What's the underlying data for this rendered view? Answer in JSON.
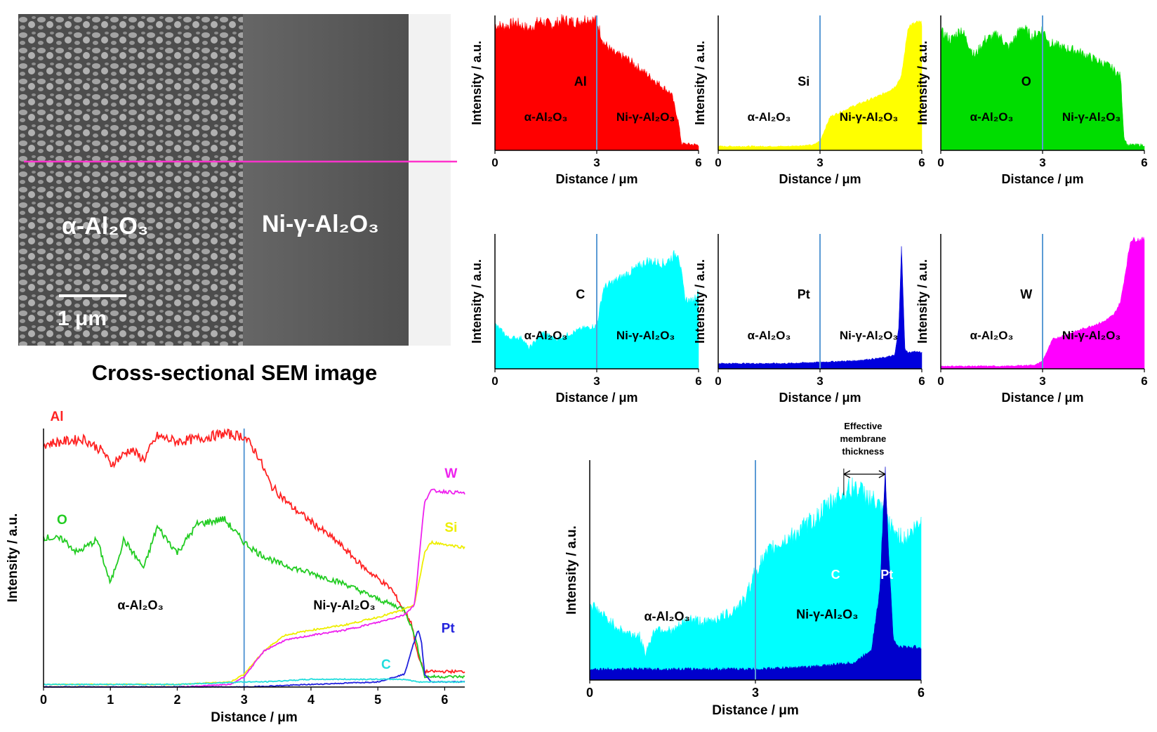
{
  "sem": {
    "caption": "Cross-sectional SEM image",
    "left_label": "α-Al₂O₃",
    "right_label": "Ni-γ-Al₂O₃",
    "scale_label": "1 μm",
    "line_color": "#ff33cc"
  },
  "common": {
    "xlabel": "Distance / μm",
    "ylabel": "Intensity / a.u.",
    "left_region": "α-Al₂O₃",
    "right_region": "Ni-γ-Al₂O₃",
    "interface_x": 3,
    "interface_color": "#5b9bd5"
  },
  "chart_data": [
    {
      "id": "al",
      "type": "area",
      "element": "Al",
      "color": "#ff0000",
      "xlim": [
        0,
        6
      ],
      "xticks": [
        0,
        3,
        6
      ],
      "x": [
        0,
        0.3,
        0.6,
        1.0,
        1.3,
        1.7,
        2.0,
        2.4,
        2.7,
        3.0,
        3.2,
        3.5,
        3.9,
        4.3,
        4.8,
        5.2,
        5.4,
        5.5,
        6.0
      ],
      "y": [
        0.93,
        0.92,
        0.95,
        0.9,
        0.96,
        0.93,
        0.97,
        0.95,
        0.98,
        0.96,
        0.8,
        0.72,
        0.68,
        0.6,
        0.5,
        0.42,
        0.22,
        0.05,
        0.04
      ]
    },
    {
      "id": "si",
      "type": "area",
      "element": "Si",
      "color": "#ffff00",
      "xlim": [
        0,
        6
      ],
      "xticks": [
        0,
        3,
        6
      ],
      "x": [
        0,
        1,
        2,
        2.8,
        3.0,
        3.3,
        4.0,
        4.8,
        5.2,
        5.4,
        5.6,
        5.9,
        6.0
      ],
      "y": [
        0.03,
        0.03,
        0.03,
        0.04,
        0.07,
        0.25,
        0.33,
        0.41,
        0.47,
        0.55,
        0.92,
        0.95,
        0.94
      ]
    },
    {
      "id": "o",
      "type": "area",
      "element": "O",
      "color": "#00dd00",
      "xlim": [
        0,
        6
      ],
      "xticks": [
        0,
        3,
        6
      ],
      "x": [
        0,
        0.3,
        0.6,
        1.0,
        1.3,
        1.7,
        2.0,
        2.4,
        2.7,
        3.0,
        3.2,
        3.6,
        4.0,
        4.5,
        5.0,
        5.3,
        5.4,
        5.5,
        6.0
      ],
      "y": [
        0.88,
        0.82,
        0.9,
        0.7,
        0.82,
        0.86,
        0.76,
        0.92,
        0.84,
        0.9,
        0.8,
        0.76,
        0.74,
        0.68,
        0.62,
        0.55,
        0.1,
        0.04,
        0.04
      ]
    },
    {
      "id": "c",
      "type": "area",
      "element": "C",
      "color": "#00ffff",
      "xlim": [
        0,
        6
      ],
      "xticks": [
        0,
        3,
        6
      ],
      "x": [
        0,
        0.4,
        0.8,
        1.0,
        1.4,
        1.8,
        2.2,
        2.6,
        3.0,
        3.2,
        3.6,
        4.0,
        4.5,
        5.0,
        5.4,
        5.6,
        5.8,
        6.0
      ],
      "y": [
        0.33,
        0.23,
        0.23,
        0.15,
        0.27,
        0.22,
        0.26,
        0.3,
        0.32,
        0.6,
        0.66,
        0.72,
        0.8,
        0.78,
        0.87,
        0.52,
        0.5,
        0.57
      ]
    },
    {
      "id": "pt",
      "type": "area",
      "element": "Pt",
      "color": "#0000dd",
      "xlim": [
        0,
        6
      ],
      "xticks": [
        0,
        3,
        6
      ],
      "x": [
        0,
        1,
        2,
        3,
        4,
        4.8,
        5.2,
        5.32,
        5.4,
        5.45,
        5.5,
        5.6,
        5.8,
        6.0
      ],
      "y": [
        0.04,
        0.04,
        0.04,
        0.05,
        0.06,
        0.08,
        0.1,
        0.3,
        0.92,
        0.55,
        0.15,
        0.12,
        0.13,
        0.12
      ]
    },
    {
      "id": "w",
      "type": "area",
      "element": "W",
      "color": "#ff00ff",
      "xlim": [
        0,
        6
      ],
      "xticks": [
        0,
        3,
        6
      ],
      "x": [
        0,
        1,
        2,
        2.8,
        3.0,
        3.3,
        4.0,
        4.8,
        5.1,
        5.3,
        5.6,
        6.0
      ],
      "y": [
        0.02,
        0.02,
        0.02,
        0.03,
        0.06,
        0.22,
        0.28,
        0.35,
        0.4,
        0.5,
        0.96,
        0.96
      ]
    },
    {
      "id": "combined",
      "type": "line",
      "xlim": [
        0,
        6.3
      ],
      "xticks": [
        0,
        1,
        2,
        3,
        4,
        5,
        6
      ],
      "series": [
        {
          "name": "Al",
          "color": "#ff2222",
          "x": [
            0,
            0.3,
            0.6,
            0.9,
            1.0,
            1.3,
            1.5,
            1.7,
            2.0,
            2.3,
            2.7,
            3.0,
            3.2,
            3.4,
            3.7,
            4.0,
            4.4,
            4.8,
            5.2,
            5.5,
            5.6,
            5.7,
            6.3
          ],
          "y": [
            0.94,
            0.95,
            0.96,
            0.91,
            0.86,
            0.92,
            0.88,
            0.97,
            0.95,
            0.96,
            0.98,
            0.97,
            0.9,
            0.78,
            0.7,
            0.64,
            0.56,
            0.46,
            0.38,
            0.25,
            0.12,
            0.06,
            0.06
          ]
        },
        {
          "name": "O",
          "color": "#22cc22",
          "x": [
            0,
            0.3,
            0.5,
            0.8,
            1.0,
            1.2,
            1.5,
            1.7,
            2.0,
            2.3,
            2.7,
            3.0,
            3.2,
            3.5,
            4.0,
            4.5,
            5.0,
            5.4,
            5.55,
            5.7,
            6.3
          ],
          "y": [
            0.58,
            0.57,
            0.52,
            0.57,
            0.4,
            0.57,
            0.46,
            0.62,
            0.52,
            0.63,
            0.65,
            0.56,
            0.52,
            0.48,
            0.44,
            0.4,
            0.34,
            0.3,
            0.2,
            0.04,
            0.04
          ]
        },
        {
          "name": "Si",
          "color": "#eeee00",
          "x": [
            0,
            1,
            2,
            2.8,
            3.0,
            3.3,
            3.6,
            4.0,
            4.5,
            5.0,
            5.4,
            5.55,
            5.7,
            5.8,
            6.3
          ],
          "y": [
            0.01,
            0.01,
            0.01,
            0.02,
            0.05,
            0.14,
            0.2,
            0.22,
            0.24,
            0.27,
            0.3,
            0.32,
            0.52,
            0.56,
            0.54
          ]
        },
        {
          "name": "W",
          "color": "#ee22ee",
          "x": [
            0,
            1,
            2,
            2.8,
            3.0,
            3.3,
            3.6,
            4.0,
            4.5,
            5.0,
            5.4,
            5.55,
            5.7,
            5.8,
            6.3
          ],
          "y": [
            0.0,
            0.0,
            0.0,
            0.01,
            0.04,
            0.14,
            0.18,
            0.2,
            0.22,
            0.25,
            0.28,
            0.32,
            0.72,
            0.76,
            0.75
          ]
        },
        {
          "name": "Pt",
          "color": "#2222dd",
          "x": [
            0,
            2,
            3,
            4,
            5,
            5.4,
            5.5,
            5.6,
            5.65,
            5.7,
            5.8,
            6.3
          ],
          "y": [
            0.0,
            0.0,
            0.0,
            0.01,
            0.02,
            0.05,
            0.14,
            0.22,
            0.18,
            0.05,
            0.02,
            0.02
          ]
        },
        {
          "name": "C",
          "color": "#22dddd",
          "x": [
            0,
            1,
            2,
            3,
            3.3,
            4.0,
            5.0,
            5.4,
            5.6,
            6.3
          ],
          "y": [
            0.01,
            0.01,
            0.01,
            0.02,
            0.02,
            0.03,
            0.03,
            0.03,
            0.02,
            0.02
          ]
        }
      ]
    },
    {
      "id": "overlay",
      "type": "area",
      "xlim": [
        0,
        6
      ],
      "xticks": [
        0,
        3,
        6
      ],
      "annotation": {
        "text": [
          "Effective",
          "membrane",
          "thickness"
        ],
        "x_from": 4.6,
        "x_to": 5.35
      },
      "series": [
        {
          "name": "C",
          "color": "#00ffff",
          "x": [
            0,
            0.3,
            0.6,
            0.9,
            1.0,
            1.2,
            1.5,
            1.8,
            2.1,
            2.5,
            2.8,
            3.0,
            3.3,
            3.7,
            4.1,
            4.5,
            4.8,
            5.2,
            5.5,
            5.7,
            6.0
          ],
          "y": [
            0.35,
            0.28,
            0.22,
            0.2,
            0.12,
            0.24,
            0.22,
            0.28,
            0.26,
            0.3,
            0.36,
            0.5,
            0.6,
            0.66,
            0.74,
            0.84,
            0.88,
            0.8,
            0.68,
            0.64,
            0.72
          ]
        },
        {
          "name": "Pt",
          "color": "#0000cc",
          "x": [
            0,
            1,
            2,
            3,
            4,
            4.8,
            5.1,
            5.25,
            5.35,
            5.42,
            5.5,
            5.6,
            5.8,
            6.0
          ],
          "y": [
            0.05,
            0.05,
            0.05,
            0.05,
            0.06,
            0.08,
            0.14,
            0.4,
            0.96,
            0.55,
            0.18,
            0.15,
            0.15,
            0.15
          ]
        }
      ]
    }
  ]
}
